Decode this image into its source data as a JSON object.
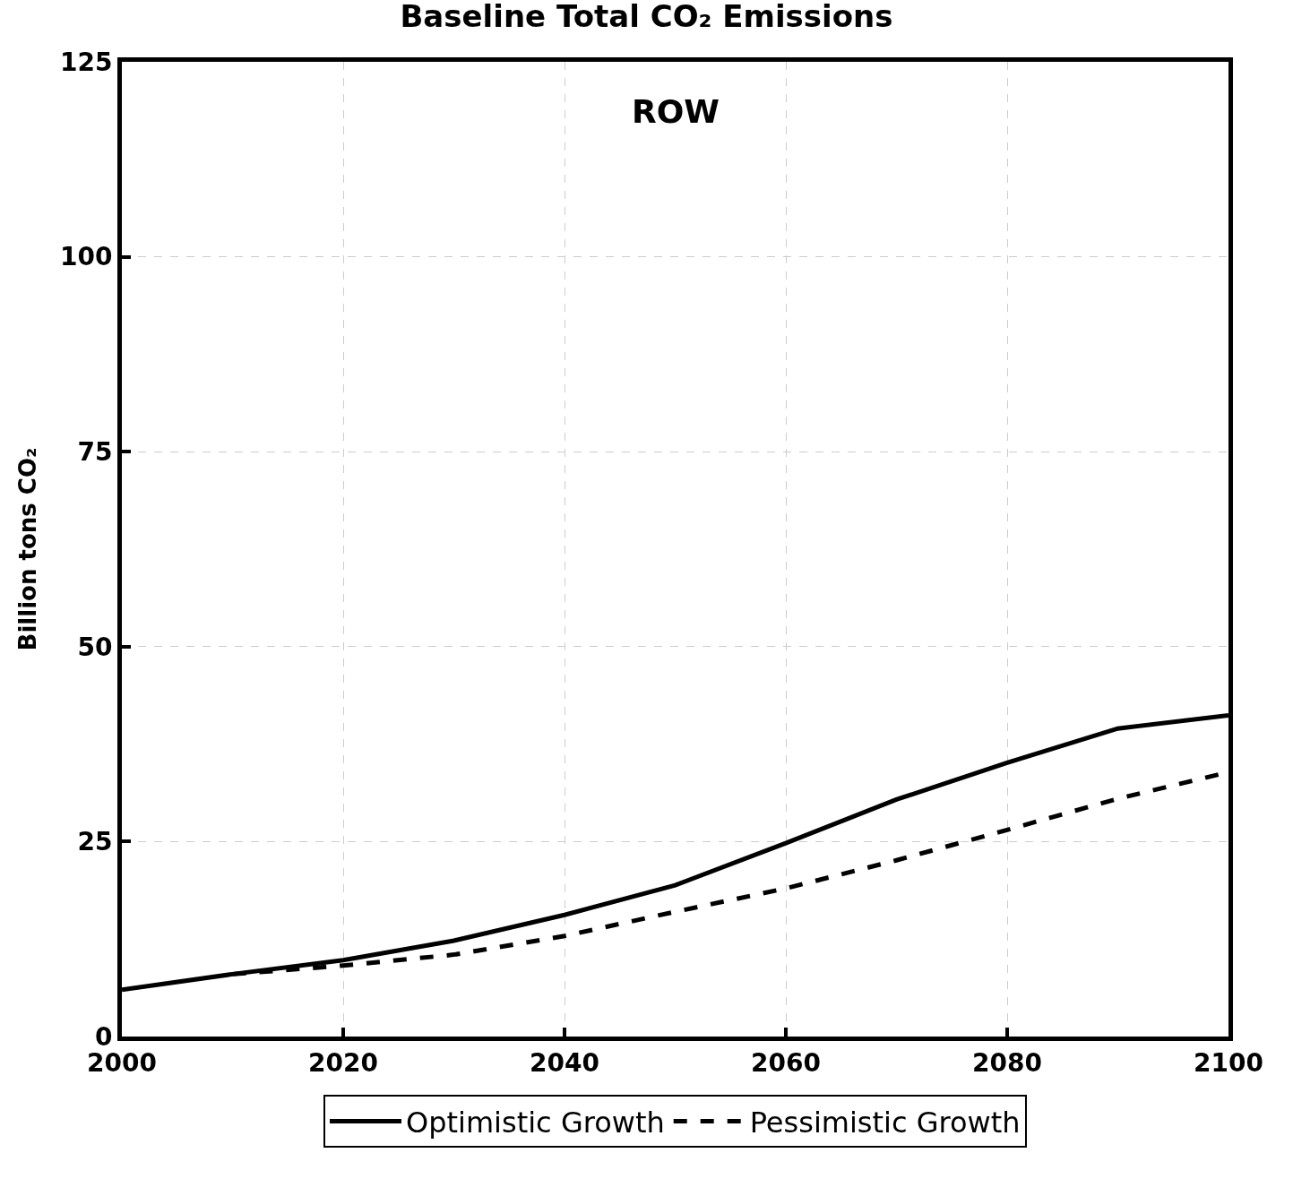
{
  "chart_data": {
    "type": "line",
    "title": "Baseline Total CO₂ Emissions",
    "ylabel": "Billion tons CO₂",
    "annotations": [
      "ROW"
    ],
    "series": [
      {
        "name": "Optimistic Growth",
        "color": "#000000",
        "line_style": "solid",
        "x": [
          2000,
          2010,
          2020,
          2030,
          2040,
          2050,
          2060,
          2070,
          2080,
          2090,
          2100
        ],
        "values": [
          6.0,
          8.0,
          9.8,
          12.3,
          15.6,
          19.4,
          24.8,
          30.4,
          35.1,
          39.5,
          41.2
        ]
      },
      {
        "name": "Pessimistic Growth",
        "color": "#000000",
        "line_style": "dashed",
        "x": [
          2010,
          2020,
          2030,
          2040,
          2050,
          2060,
          2070,
          2080,
          2090,
          2100
        ],
        "values": [
          8.0,
          9.1,
          10.5,
          12.9,
          16.0,
          19.0,
          22.6,
          26.5,
          30.5,
          33.9
        ]
      }
    ],
    "xlim": [
      2000,
      2100
    ],
    "xticks": [
      2000,
      2020,
      2040,
      2060,
      2080,
      2100
    ],
    "ylim": [
      0,
      125
    ],
    "yticks": [
      0,
      25,
      50,
      75,
      100,
      125
    ],
    "grid": true,
    "legend": "bottom",
    "marker": "none"
  }
}
